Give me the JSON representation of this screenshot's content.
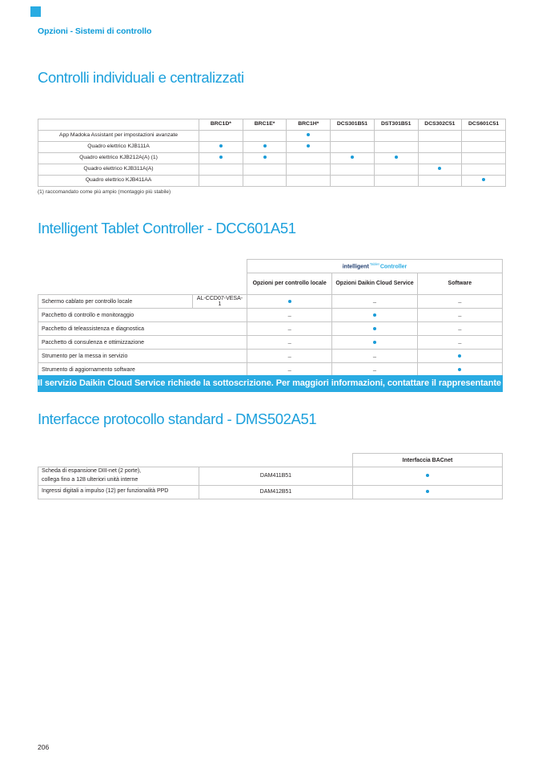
{
  "page": {
    "eyebrow": "Opzioni - Sistemi di controllo",
    "page_number": "206"
  },
  "colors": {
    "accent_blue": "#29abe2",
    "heading_blue": "#1ca0dc",
    "dot_blue": "#1b9cd8"
  },
  "sections": {
    "controls": {
      "title": "Controlli individuali e centralizzati",
      "table": {
        "columns": [
          "BRC1D*",
          "BRC1E*",
          "BRC1H*",
          "DCS301B51",
          "DST301B51",
          "DCS302C51",
          "DCS601C51"
        ],
        "rows": [
          {
            "label": "App Madoka Assistant per impostazioni avanzate",
            "cells": [
              "",
              "",
              "dot",
              "",
              "",
              "",
              ""
            ]
          },
          {
            "label": "Quadro elettrico KJB111A",
            "cells": [
              "dot",
              "dot",
              "dot",
              "",
              "",
              "",
              ""
            ]
          },
          {
            "label": "Quadro elettrico KJB212A(A) (1)",
            "cells": [
              "dot",
              "dot",
              "",
              "dot",
              "dot",
              "",
              ""
            ]
          },
          {
            "label": "Quadro elettrico KJB311A(A)",
            "cells": [
              "",
              "",
              "",
              "",
              "",
              "dot",
              ""
            ]
          },
          {
            "label": "Quadro elettrico KJB411AA",
            "cells": [
              "",
              "",
              "",
              "",
              "",
              "",
              "dot"
            ]
          }
        ],
        "footnote": "(1) raccomandato come più ampio (montaggio più stabile)"
      }
    },
    "tablet": {
      "title": "Intelligent Tablet Controller - DCC601A51",
      "logo": {
        "intelligent": "intelligent",
        "tab": "Tablet",
        "controller": "Controller"
      },
      "table": {
        "columns": [
          "Opzioni per controllo locale",
          "Opzioni Daikin Cloud Service",
          "Software"
        ],
        "rows": [
          {
            "label": "Schermo cablato per controllo locale",
            "code": "AL-CCD07-VESA-1",
            "cells": [
              "dot",
              "dash",
              "dash"
            ]
          },
          {
            "label": "Pacchetto di controllo e monitoraggio",
            "code": "",
            "cells": [
              "dash",
              "dot",
              "dash"
            ]
          },
          {
            "label": "Pacchetto di teleassistenza e diagnostica",
            "code": "",
            "cells": [
              "dash",
              "dot",
              "dash"
            ]
          },
          {
            "label": "Pacchetto di consulenza e ottimizzazione",
            "code": "",
            "cells": [
              "dash",
              "dot",
              "dash"
            ]
          },
          {
            "label": "Strumento per la messa in servizio",
            "code": "",
            "cells": [
              "dash",
              "dash",
              "dot"
            ]
          },
          {
            "label": "Strumento di aggiornamento software",
            "code": "",
            "cells": [
              "dash",
              "dash",
              "dot"
            ]
          }
        ]
      },
      "banner": "Il servizio Daikin Cloud Service richiede la sottoscrizione. Per maggiori informazioni, contattare il rappresentante di vendita locale"
    },
    "interfaces": {
      "title": "Interfacce protocollo standard - DMS502A51",
      "table": {
        "columns": [
          "Interfaccia BACnet"
        ],
        "rows": [
          {
            "label": "Scheda di espansione DIII-net (2 porte),\ncollega fino a 128 ulteriori unità interne",
            "code": "DAM411B51",
            "cells": [
              "dot"
            ]
          },
          {
            "label": "Ingressi digitali a impulso (12) per funzionalità PPD",
            "code": "DAM412B51",
            "cells": [
              "dot"
            ]
          }
        ]
      }
    }
  }
}
